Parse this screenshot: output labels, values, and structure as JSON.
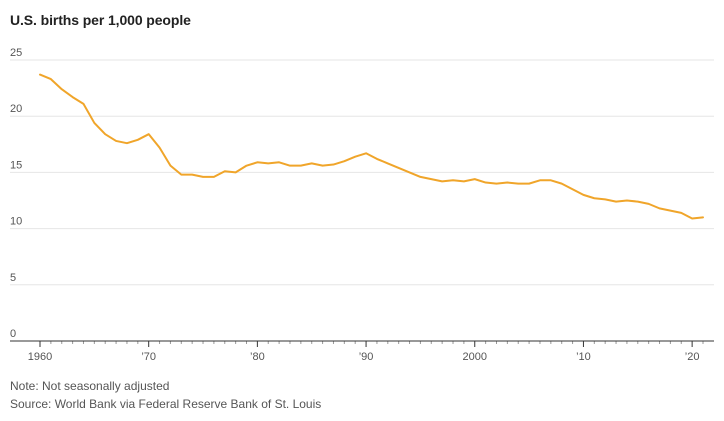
{
  "chart_data": {
    "type": "line",
    "title": "U.S. births per 1,000 people",
    "xlabel": "",
    "ylabel": "",
    "xlim": [
      1960,
      2021
    ],
    "ylim": [
      0,
      25
    ],
    "yticks": [
      0,
      5,
      10,
      15,
      20,
      25
    ],
    "xticks": [
      {
        "value": 1960,
        "label": "1960"
      },
      {
        "value": 1970,
        "label": "’70"
      },
      {
        "value": 1980,
        "label": "’80"
      },
      {
        "value": 1990,
        "label": "’90"
      },
      {
        "value": 2000,
        "label": "2000"
      },
      {
        "value": 2010,
        "label": "’10"
      },
      {
        "value": 2020,
        "label": "’20"
      }
    ],
    "grid": true,
    "line_color": "#f0a52a",
    "series": [
      {
        "x": [
          1960,
          1961,
          1962,
          1963,
          1964,
          1965,
          1966,
          1967,
          1968,
          1969,
          1970,
          1971,
          1972,
          1973,
          1974,
          1975,
          1976,
          1977,
          1978,
          1979,
          1980,
          1981,
          1982,
          1983,
          1984,
          1985,
          1986,
          1987,
          1988,
          1989,
          1990,
          1991,
          1992,
          1993,
          1994,
          1995,
          1996,
          1997,
          1998,
          1999,
          2000,
          2001,
          2002,
          2003,
          2004,
          2005,
          2006,
          2007,
          2008,
          2009,
          2010,
          2011,
          2012,
          2013,
          2014,
          2015,
          2016,
          2017,
          2018,
          2019,
          2020,
          2021
        ],
        "values": [
          23.7,
          23.3,
          22.4,
          21.7,
          21.1,
          19.4,
          18.4,
          17.8,
          17.6,
          17.9,
          18.4,
          17.2,
          15.6,
          14.8,
          14.8,
          14.6,
          14.6,
          15.1,
          15.0,
          15.6,
          15.9,
          15.8,
          15.9,
          15.6,
          15.6,
          15.8,
          15.6,
          15.7,
          16.0,
          16.4,
          16.7,
          16.2,
          15.8,
          15.4,
          15.0,
          14.6,
          14.4,
          14.2,
          14.3,
          14.2,
          14.4,
          14.1,
          14.0,
          14.1,
          14.0,
          14.0,
          14.3,
          14.3,
          14.0,
          13.5,
          13.0,
          12.7,
          12.6,
          12.4,
          12.5,
          12.4,
          12.2,
          11.8,
          11.6,
          11.4,
          10.9,
          11.0
        ]
      }
    ]
  },
  "footer": {
    "note": "Note: Not seasonally adjusted",
    "source": "Source: World Bank via Federal Reserve Bank of St. Louis"
  }
}
